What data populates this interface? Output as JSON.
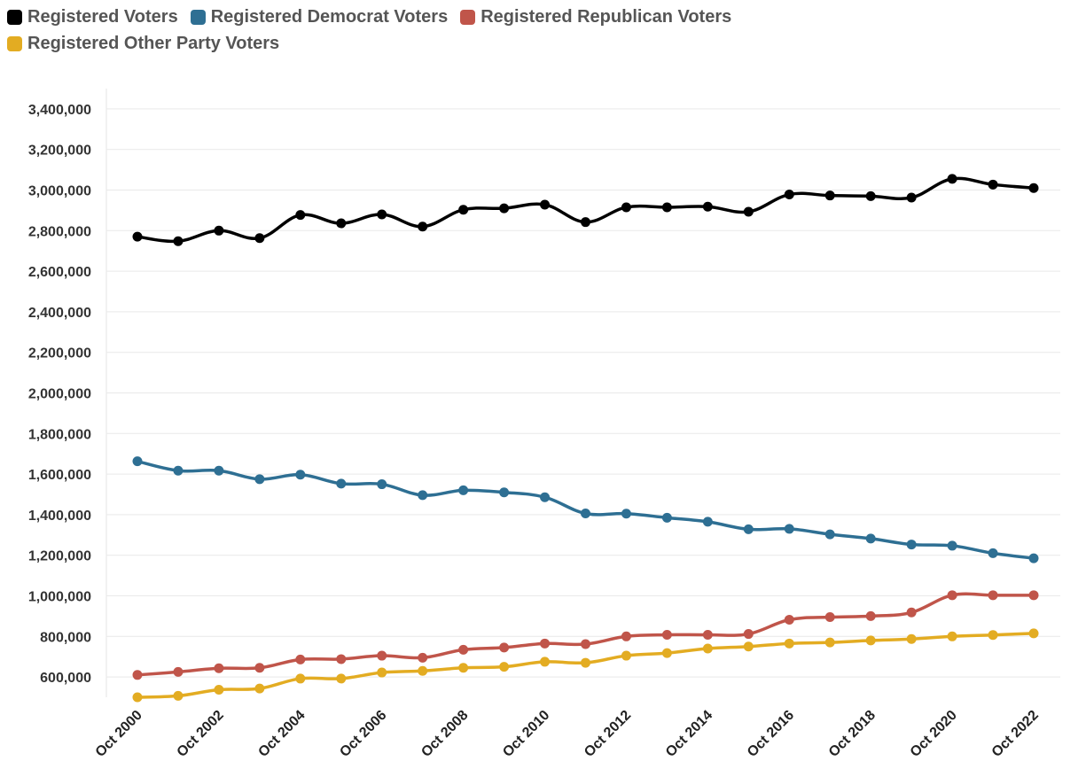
{
  "chart_data": {
    "type": "line",
    "title": "",
    "xlabel": "",
    "ylabel": "",
    "x": [
      "Oct 2000",
      "Oct 2001",
      "Oct 2002",
      "Oct 2003",
      "Oct 2004",
      "Oct 2005",
      "Oct 2006",
      "Oct 2007",
      "Oct 2008",
      "Oct 2009",
      "Oct 2010",
      "Oct 2011",
      "Oct 2012",
      "Oct 2013",
      "Oct 2014",
      "Oct 2015",
      "Oct 2016",
      "Oct 2017",
      "Oct 2018",
      "Oct 2019",
      "Oct 2020",
      "Oct 2021",
      "Oct 2022"
    ],
    "x_tick_labels": [
      "Oct 2000",
      "Oct 2002",
      "Oct 2004",
      "Oct 2006",
      "Oct 2008",
      "Oct 2010",
      "Oct 2012",
      "Oct 2014",
      "Oct 2016",
      "Oct 2018",
      "Oct 2020",
      "Oct 2022"
    ],
    "ylim": [
      500000,
      3500000
    ],
    "y_ticks": [
      600000,
      800000,
      1000000,
      1200000,
      1400000,
      1600000,
      1800000,
      2000000,
      2200000,
      2400000,
      2600000,
      2800000,
      3000000,
      3200000,
      3400000
    ],
    "y_tick_labels": [
      "600,000",
      "800,000",
      "1,000,000",
      "1,200,000",
      "1,400,000",
      "1,600,000",
      "1,800,000",
      "2,000,000",
      "2,200,000",
      "2,400,000",
      "2,600,000",
      "2,800,000",
      "3,000,000",
      "3,200,000",
      "3,400,000"
    ],
    "grid": true,
    "legend_position": "top-left",
    "series": [
      {
        "name": "Registered Voters",
        "color": "#000000",
        "values": [
          2770000,
          2748000,
          2800000,
          2763000,
          2877000,
          2836000,
          2880000,
          2820000,
          2903000,
          2910000,
          2928000,
          2842000,
          2915000,
          2915000,
          2918000,
          2893000,
          2978000,
          2973000,
          2970000,
          2963000,
          3055000,
          3027000,
          3010000
        ]
      },
      {
        "name": "Registered Democrat Voters",
        "color": "#2e6f93",
        "values": [
          1663000,
          1617000,
          1617000,
          1575000,
          1597000,
          1553000,
          1550000,
          1496000,
          1520000,
          1510000,
          1486000,
          1406000,
          1405000,
          1385000,
          1365000,
          1328000,
          1330000,
          1303000,
          1282000,
          1253000,
          1247000,
          1210000,
          1185000
        ]
      },
      {
        "name": "Registered Republican Voters",
        "color": "#c0554a",
        "values": [
          610000,
          625000,
          643000,
          645000,
          686000,
          688000,
          705000,
          695000,
          734000,
          745000,
          765000,
          762000,
          800000,
          808000,
          808000,
          812000,
          882000,
          895000,
          900000,
          918000,
          1003000,
          1003000,
          1003000
        ]
      },
      {
        "name": "Registered Other Party Voters",
        "color": "#e3ac22",
        "values": [
          500000,
          507000,
          537000,
          543000,
          592000,
          592000,
          622000,
          630000,
          645000,
          650000,
          675000,
          670000,
          705000,
          718000,
          740000,
          750000,
          765000,
          770000,
          780000,
          787000,
          800000,
          807000,
          815000
        ]
      }
    ]
  }
}
